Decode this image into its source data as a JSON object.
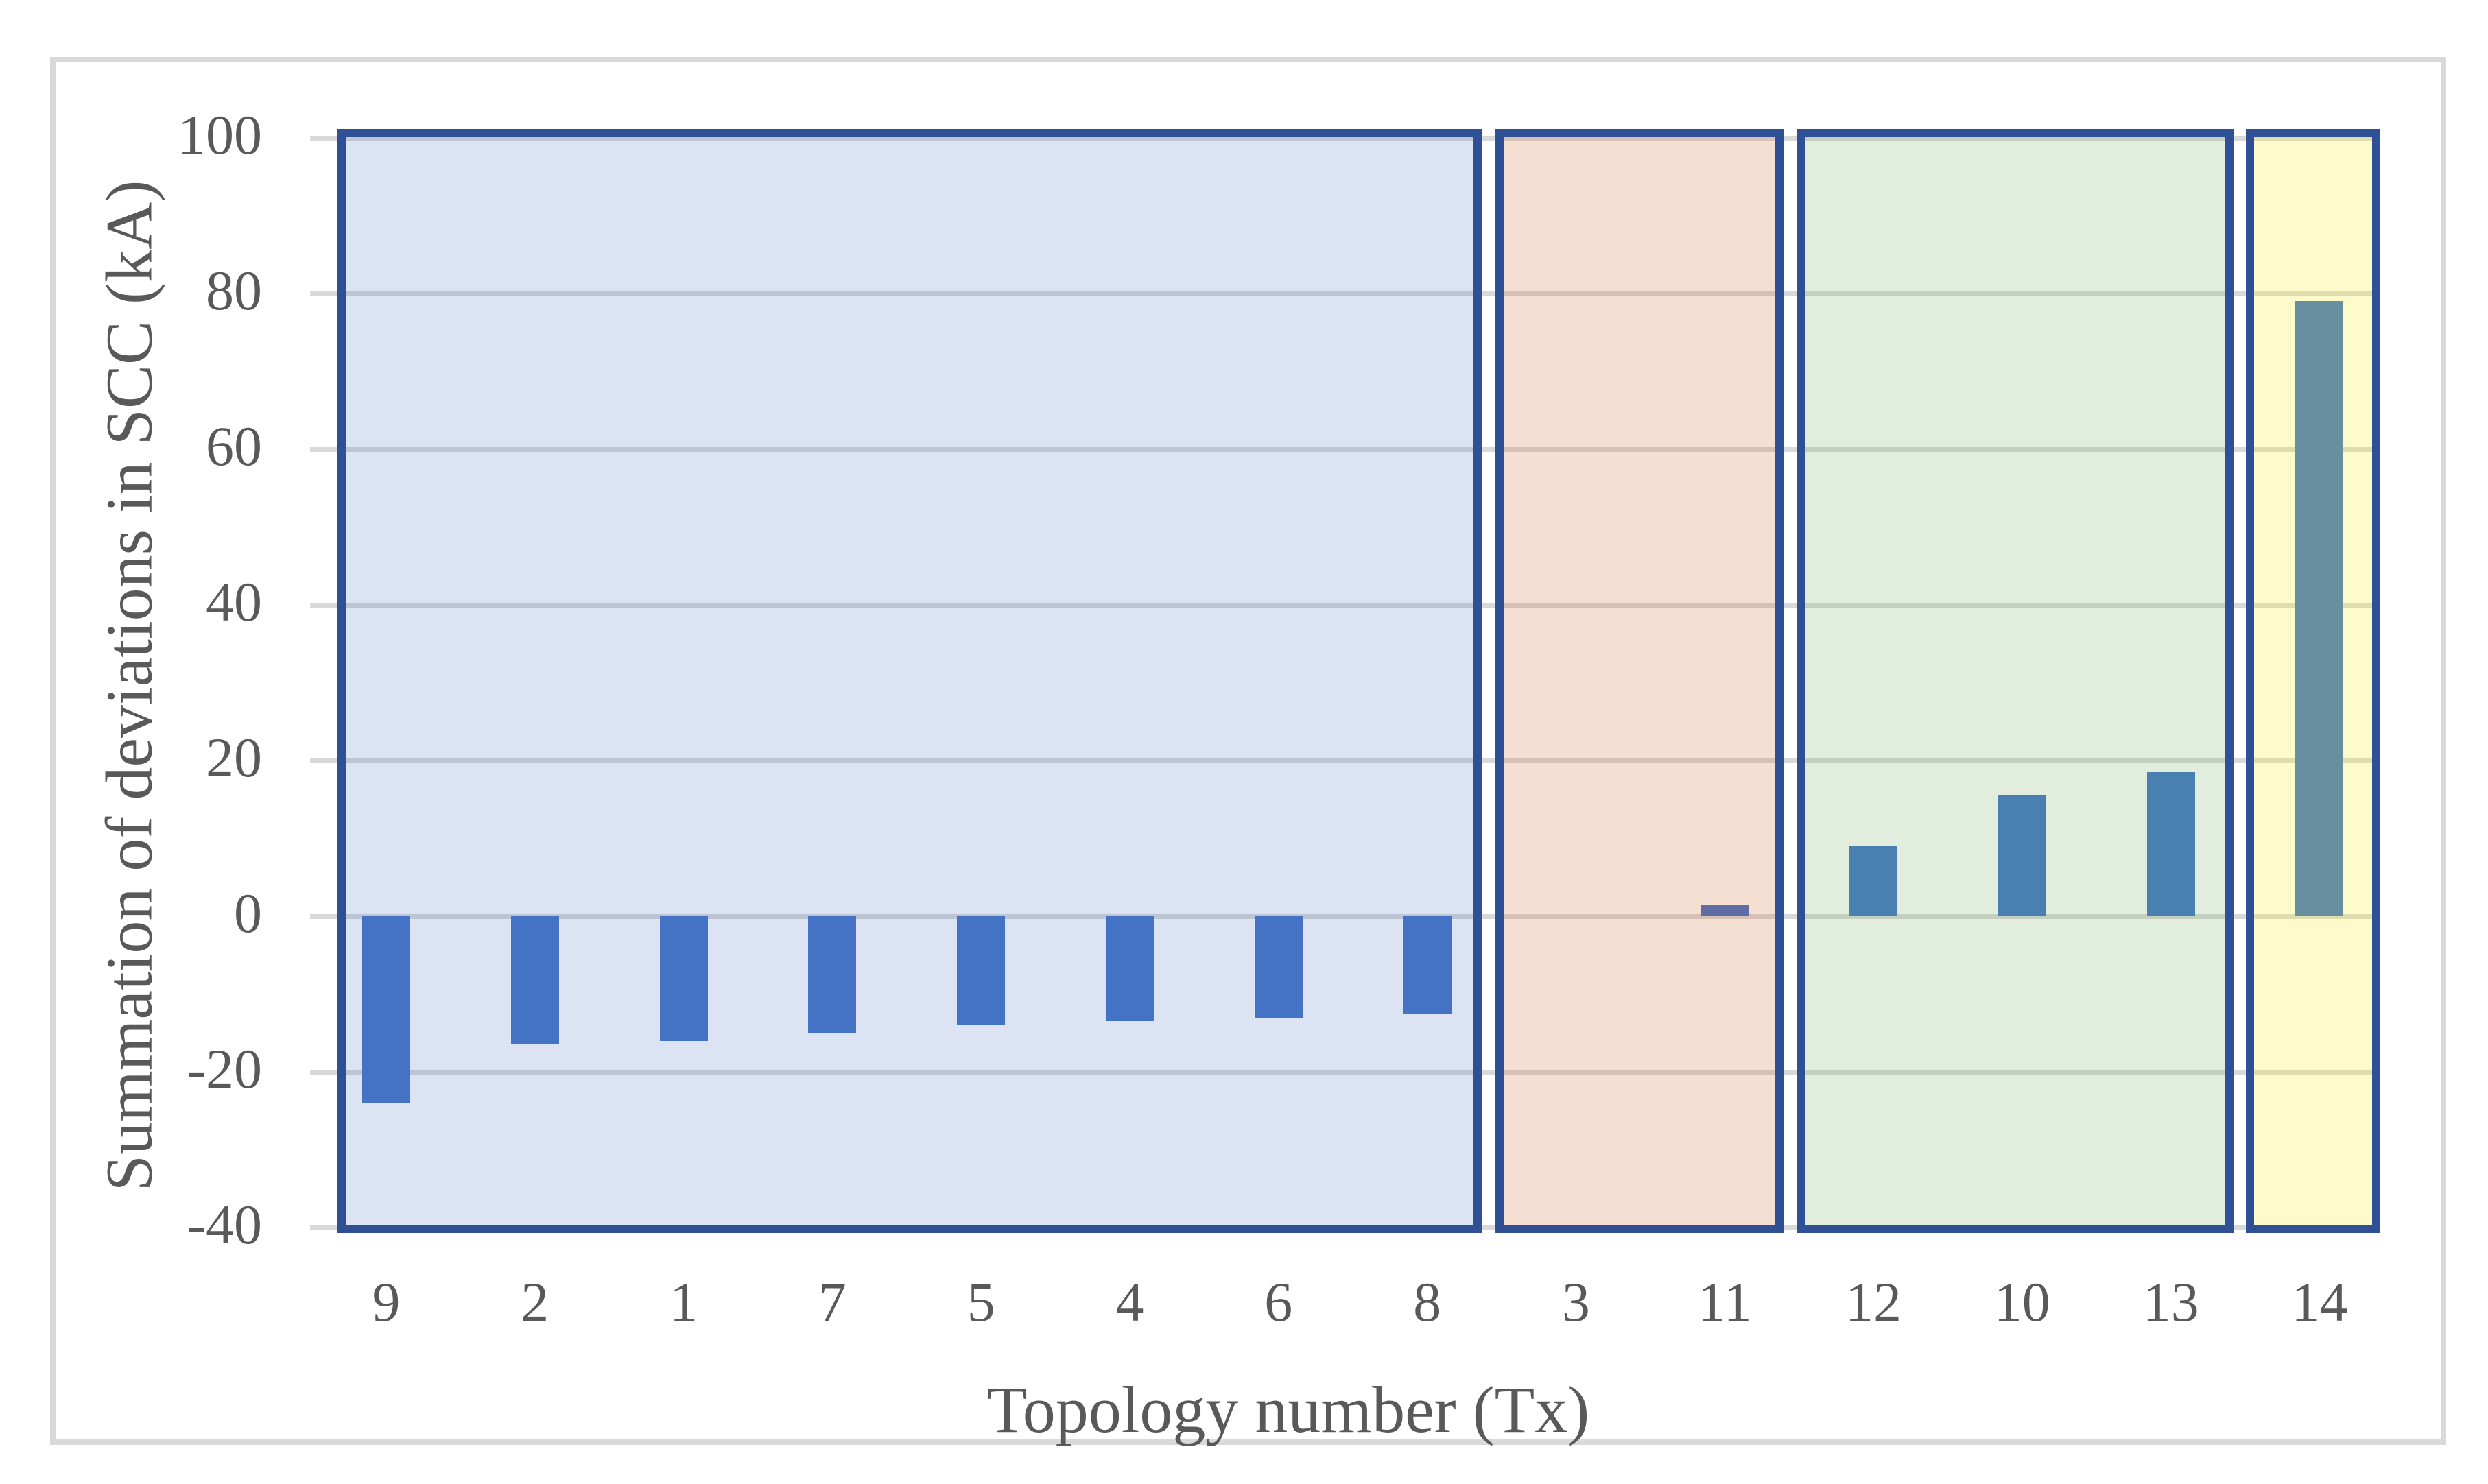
{
  "figure": {
    "background": "#ffffff",
    "frame_color": "#d9d9d9"
  },
  "chart_data": {
    "type": "bar",
    "title": "",
    "xlabel": "Topology number (Tx)",
    "ylabel": "Summation of deviations in SCC (kA)",
    "ylim": [
      -40,
      100
    ],
    "ytick_step": 20,
    "yticks": [
      "100",
      "80",
      "60",
      "40",
      "20",
      "0",
      "-20",
      "-40"
    ],
    "ytick_values": [
      100,
      80,
      60,
      40,
      20,
      0,
      -20,
      -40
    ],
    "grid": true,
    "gridline_color": "#d9d9d9",
    "axis_text_color": "#595959",
    "categories": [
      "9",
      "2",
      "1",
      "7",
      "5",
      "4",
      "6",
      "8",
      "3",
      "11",
      "12",
      "10",
      "13",
      "14"
    ],
    "values": [
      -24,
      -16.5,
      -16,
      -15,
      -14,
      -13.5,
      -13,
      -12.5,
      0,
      1.5,
      9,
      15.5,
      18.5,
      79
    ],
    "bar_colors": [
      "#4472c4",
      "#4472c4",
      "#4472c4",
      "#4472c4",
      "#4472c4",
      "#4472c4",
      "#4472c4",
      "#4472c4",
      "#4472c4",
      "#5e6da6",
      "#4a7fb1",
      "#4a7fb1",
      "#4a7fb1",
      "#688fa0"
    ],
    "legend": null,
    "groups": [
      {
        "name": "group-1",
        "members": [
          "9",
          "2",
          "1",
          "7",
          "5",
          "4",
          "6",
          "8"
        ],
        "fill": "rgba(68,114,196,0.19)",
        "border_color": "#2f5094"
      },
      {
        "name": "group-2",
        "members": [
          "3",
          "11"
        ],
        "fill": "rgba(210,110,50,0.22)",
        "border_color": "#2f5094"
      },
      {
        "name": "group-3",
        "members": [
          "12",
          "10",
          "13"
        ],
        "fill": "rgba(123,178,100,0.22)",
        "border_color": "#2f5094"
      },
      {
        "name": "group-4",
        "members": [
          "14"
        ],
        "fill": "rgba(246,237,19,0.22)",
        "border_color": "#2f5094"
      }
    ]
  }
}
